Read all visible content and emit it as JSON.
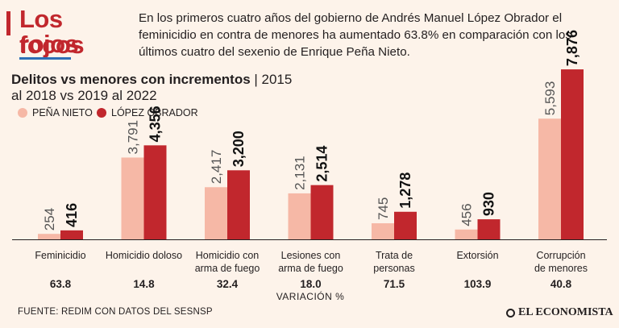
{
  "header": {
    "title_line1": "Los focos",
    "title_line2": "rojos",
    "intro": "En los primeros cuatro años del gobierno de Andrés Manuel López Obrador el feminicidio en contra de menores ha aumentado 63.8% en comparación con los últimos cuatro del sexenio de Enrique Peña Nieto."
  },
  "colors": {
    "pena_nieto": "#f6b8a6",
    "lopez_obrador": "#c1272d",
    "accent": "#c1272d",
    "background": "#fdf3ea"
  },
  "chart_data": {
    "type": "bar",
    "title": "Delitos vs menores con incrementos",
    "subtitle_rest": " | 2015",
    "subtitle_line2": "al 2018 vs 2019 al 2022",
    "legend": [
      "PEÑA NIETO",
      "LÓPEZ OBRADOR"
    ],
    "categories": [
      [
        "Feminicidio"
      ],
      [
        "Homicidio doloso"
      ],
      [
        "Homicidio con",
        "arma de fuego"
      ],
      [
        "Lesiones con",
        "arma de fuego"
      ],
      [
        "Trata de",
        "personas"
      ],
      [
        "Extorsión"
      ],
      [
        "Corrupción",
        "de menores"
      ]
    ],
    "series": [
      {
        "name": "Peña Nieto",
        "values": [
          254,
          3791,
          2417,
          2131,
          745,
          456,
          5593
        ],
        "labels": [
          "254",
          "3,791",
          "2,417",
          "2,131",
          "745",
          "456",
          "5,593"
        ]
      },
      {
        "name": "López Obrador",
        "values": [
          416,
          4356,
          3200,
          2514,
          1278,
          930,
          7876
        ],
        "labels": [
          "416",
          "4,356",
          "3,200",
          "2,514",
          "1,278",
          "930",
          "7,876"
        ]
      }
    ],
    "variation": [
      "63.8",
      "14.8",
      "32.4",
      "18.0",
      "71.5",
      "103.9",
      "40.8"
    ],
    "variation_label": "VARIACIÓN %",
    "ylim": [
      0,
      8500
    ]
  },
  "footer": {
    "source": "FUENTE: REDIM CON DATOS DEL  SESNSP",
    "logo": "EL ECONOMISTA"
  }
}
